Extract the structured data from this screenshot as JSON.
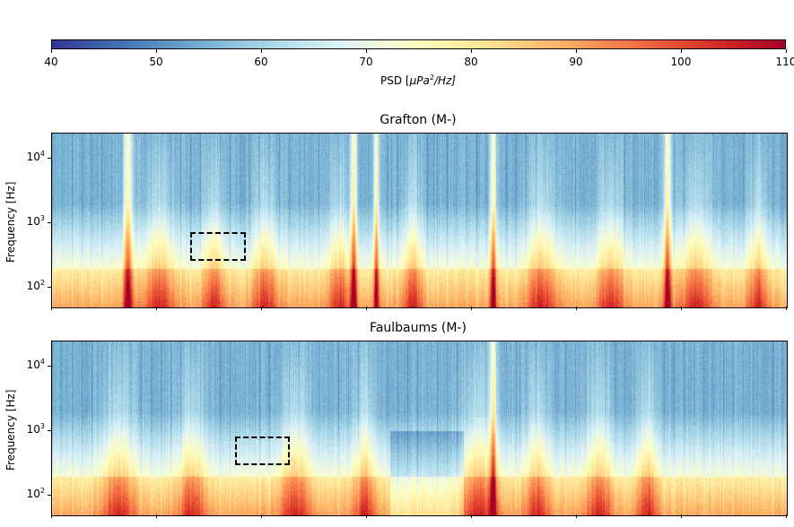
{
  "chart_data": {
    "type": "heatmap",
    "colorbar": {
      "label_prefix": "PSD [",
      "label_unit": "μPa",
      "label_exp": "2",
      "label_suffix": "/Hz]",
      "min": 40,
      "max": 110,
      "ticks": [
        "40",
        "50",
        "60",
        "70",
        "80",
        "90",
        "100",
        "110"
      ],
      "colormap": "RdYlBu_r",
      "placement": "top"
    },
    "panels": [
      {
        "title": "Grafton (M-)",
        "ylabel": "Frequency [Hz]",
        "yscale": "log",
        "ylim": [
          50,
          24000
        ],
        "yticks": [
          {
            "base": "10",
            "exp": "4"
          },
          {
            "base": "10",
            "exp": "3"
          },
          {
            "base": "10",
            "exp": "2"
          }
        ],
        "annotation_box": {
          "freq_range_hz": [
            255,
            706
          ],
          "style": "dashed"
        }
      },
      {
        "title": "Faulbaums (M-)",
        "ylabel": "Frequency [Hz]",
        "yscale": "log",
        "ylim": [
          50,
          24000
        ],
        "yticks": [
          {
            "base": "10",
            "exp": "4"
          },
          {
            "base": "10",
            "exp": "3"
          },
          {
            "base": "10",
            "exp": "2"
          }
        ],
        "annotation_box": {
          "freq_range_hz": [
            290,
            800
          ],
          "style": "dashed"
        }
      }
    ]
  }
}
